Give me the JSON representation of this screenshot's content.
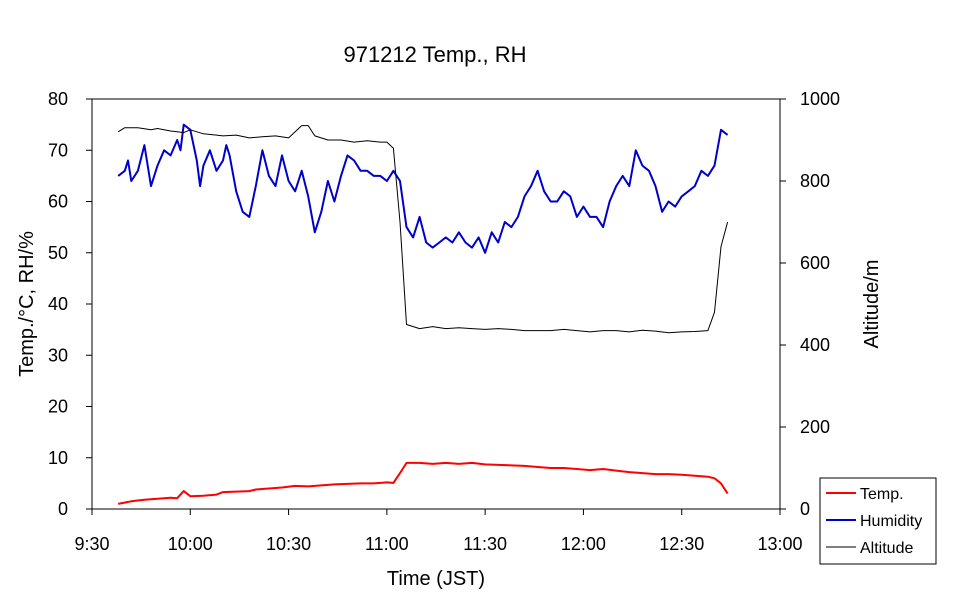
{
  "chart_data": {
    "type": "line",
    "title": "971212 Temp., RH",
    "xlabel": "Time (JST)",
    "ylabel": "Temp./°C, RH/%",
    "y2label": "Altitude/m",
    "x_unit": "minutes after 9:30",
    "xlim": [
      0,
      210
    ],
    "ylim": [
      0,
      80
    ],
    "y2lim": [
      0,
      1000
    ],
    "x_ticks": [
      {
        "x": 0,
        "label": "9:30"
      },
      {
        "x": 30,
        "label": "10:00"
      },
      {
        "x": 60,
        "label": "10:30"
      },
      {
        "x": 90,
        "label": "11:00"
      },
      {
        "x": 120,
        "label": "11:30"
      },
      {
        "x": 150,
        "label": "12:00"
      },
      {
        "x": 180,
        "label": "12:30"
      },
      {
        "x": 210,
        "label": "13:00"
      }
    ],
    "y_ticks": [
      "0",
      "10",
      "20",
      "30",
      "40",
      "50",
      "60",
      "70",
      "80"
    ],
    "y2_ticks": [
      "0",
      "200",
      "400",
      "600",
      "800",
      "1000"
    ],
    "grid": false,
    "legend_position": "bottom-right",
    "series": [
      {
        "name": "Temp.",
        "axis": "left",
        "color": "#ff0000",
        "x": [
          8,
          12,
          16,
          20,
          24,
          26,
          28,
          30,
          34,
          38,
          40,
          44,
          48,
          50,
          54,
          58,
          62,
          66,
          70,
          74,
          78,
          82,
          86,
          90,
          92,
          94,
          96,
          100,
          104,
          108,
          112,
          116,
          120,
          124,
          128,
          132,
          136,
          140,
          144,
          148,
          152,
          156,
          160,
          164,
          168,
          172,
          176,
          180,
          184,
          188,
          190,
          192,
          194
        ],
        "y": [
          1,
          1.5,
          1.8,
          2,
          2.2,
          2.1,
          3.5,
          2.5,
          2.6,
          2.8,
          3.3,
          3.4,
          3.5,
          3.8,
          4,
          4.2,
          4.5,
          4.4,
          4.6,
          4.8,
          4.9,
          5,
          5,
          5.2,
          5.1,
          7,
          9,
          9,
          8.8,
          9,
          8.8,
          9,
          8.7,
          8.6,
          8.5,
          8.4,
          8.2,
          8,
          8,
          7.8,
          7.6,
          7.8,
          7.5,
          7.2,
          7,
          6.8,
          6.8,
          6.7,
          6.5,
          6.3,
          6,
          5,
          3
        ]
      },
      {
        "name": "Humidity",
        "axis": "left",
        "color": "#0000cc",
        "x": [
          8,
          10,
          11,
          12,
          14,
          16,
          18,
          20,
          22,
          24,
          26,
          27,
          28,
          30,
          32,
          33,
          34,
          36,
          38,
          40,
          41,
          42,
          44,
          46,
          48,
          50,
          52,
          54,
          56,
          58,
          60,
          62,
          64,
          66,
          68,
          70,
          72,
          74,
          76,
          78,
          80,
          82,
          84,
          86,
          88,
          90,
          92,
          94,
          96,
          98,
          100,
          102,
          104,
          106,
          108,
          110,
          112,
          114,
          116,
          118,
          120,
          122,
          124,
          126,
          128,
          130,
          132,
          134,
          136,
          138,
          140,
          142,
          144,
          146,
          148,
          150,
          152,
          154,
          156,
          158,
          160,
          162,
          164,
          166,
          168,
          170,
          172,
          174,
          176,
          178,
          180,
          182,
          184,
          186,
          188,
          190,
          192,
          194
        ],
        "y": [
          65,
          66,
          68,
          64,
          66,
          71,
          63,
          67,
          70,
          69,
          72,
          70,
          75,
          74,
          68,
          63,
          67,
          70,
          66,
          68,
          71,
          69,
          62,
          58,
          57,
          63,
          70,
          65,
          63,
          69,
          64,
          62,
          66,
          61,
          54,
          58,
          64,
          60,
          65,
          69,
          68,
          66,
          66,
          65,
          65,
          64,
          66,
          64,
          55,
          53,
          57,
          52,
          51,
          52,
          53,
          52,
          54,
          52,
          51,
          53,
          50,
          54,
          52,
          56,
          55,
          57,
          61,
          63,
          66,
          62,
          60,
          60,
          62,
          61,
          57,
          59,
          57,
          57,
          55,
          60,
          63,
          65,
          63,
          70,
          67,
          66,
          63,
          58,
          60,
          59,
          61,
          62,
          63,
          66,
          65,
          67,
          74,
          73
        ]
      },
      {
        "name": "Altitude",
        "axis": "right",
        "color": "#000000",
        "x": [
          8,
          10,
          14,
          18,
          20,
          24,
          26,
          28,
          30,
          34,
          38,
          40,
          44,
          48,
          52,
          56,
          60,
          64,
          66,
          68,
          72,
          76,
          80,
          84,
          88,
          90,
          92,
          94,
          96,
          100,
          104,
          108,
          112,
          116,
          120,
          124,
          128,
          132,
          136,
          140,
          144,
          148,
          152,
          156,
          160,
          164,
          168,
          172,
          176,
          180,
          184,
          188,
          190,
          192,
          194
        ],
        "y": [
          920,
          930,
          930,
          925,
          928,
          922,
          920,
          918,
          925,
          915,
          912,
          910,
          912,
          905,
          908,
          910,
          905,
          935,
          935,
          910,
          900,
          900,
          895,
          898,
          895,
          895,
          880,
          700,
          450,
          440,
          445,
          440,
          442,
          440,
          438,
          440,
          438,
          435,
          435,
          435,
          438,
          435,
          432,
          435,
          435,
          432,
          436,
          434,
          430,
          432,
          433,
          435,
          480,
          640,
          700
        ]
      }
    ]
  }
}
